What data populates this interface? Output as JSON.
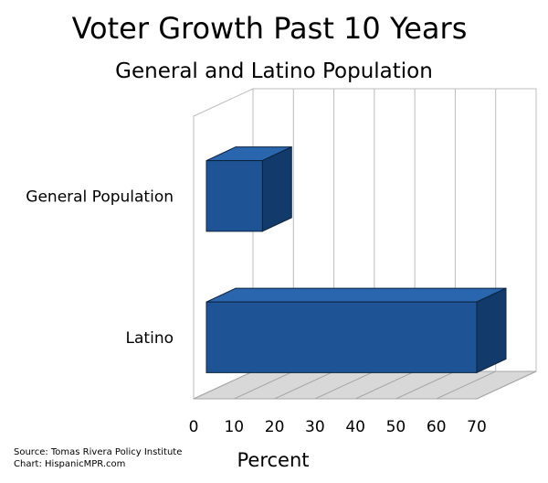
{
  "chart_data": {
    "type": "bar",
    "orientation": "horizontal",
    "style": "3d",
    "title": "Voter Growth Past 10 Years",
    "subtitle": "General and Latino Population",
    "categories": [
      "General Population",
      "Latino"
    ],
    "values": [
      17,
      70
    ],
    "xlabel": "Percent",
    "ylabel": "",
    "xlim": [
      0,
      70
    ],
    "xticks": [
      "0",
      "10",
      "20",
      "30",
      "40",
      "50",
      "60",
      "70"
    ],
    "grid": true,
    "legend": "none",
    "bar_color": "#1e5495"
  },
  "source": {
    "line1": "Source: Tomas Rivera Policy Institute",
    "line2": "Chart: HispanicMPR.com"
  }
}
